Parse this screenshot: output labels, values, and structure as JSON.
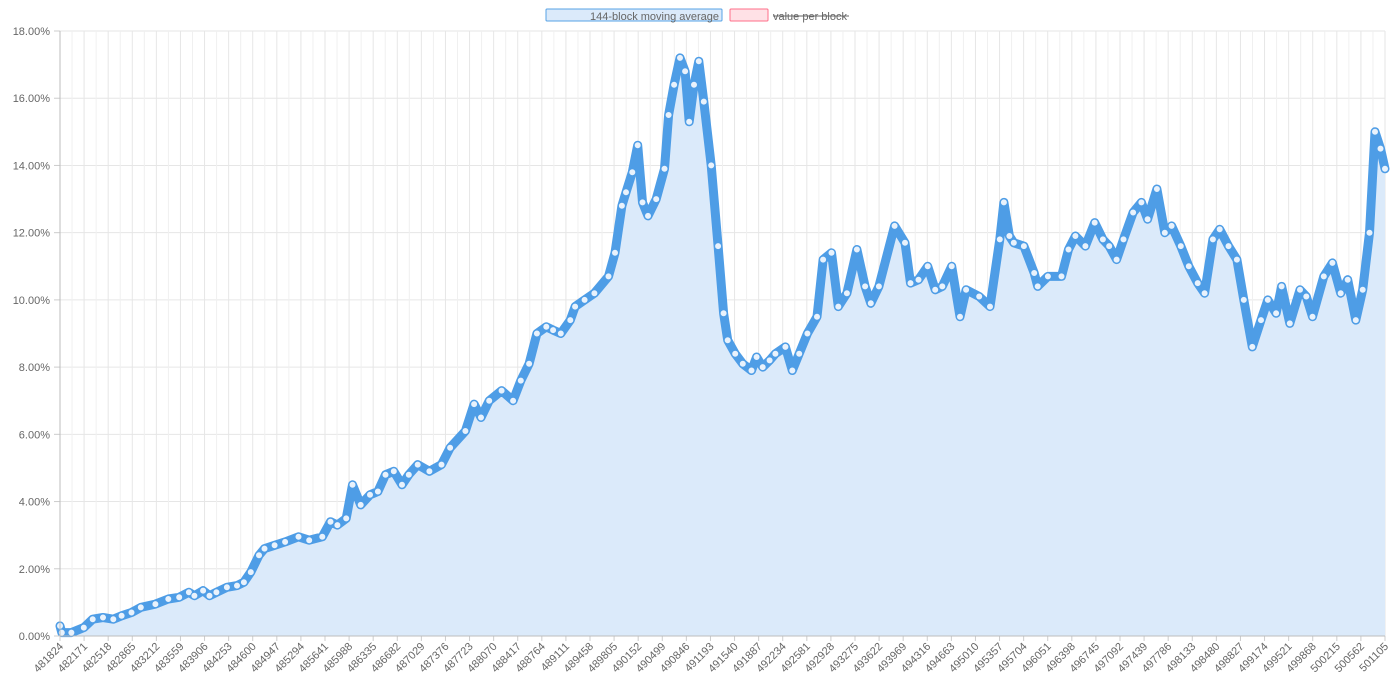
{
  "chart_data": {
    "type": "area",
    "title": "",
    "xlabel": "",
    "ylabel": "",
    "ylim": [
      0,
      18
    ],
    "y_tick_labels": [
      "0.00%",
      "2.00%",
      "4.00%",
      "6.00%",
      "8.00%",
      "10.00%",
      "12.00%",
      "14.00%",
      "16.00%",
      "18.00%"
    ],
    "y_tick_values": [
      0,
      2,
      4,
      6,
      8,
      10,
      12,
      14,
      16,
      18
    ],
    "xlim": [
      481824,
      501105
    ],
    "x_tick_labels": [
      "481824",
      "482171",
      "482518",
      "482865",
      "483212",
      "483559",
      "483906",
      "484253",
      "484600",
      "484947",
      "485294",
      "485641",
      "485988",
      "486335",
      "486682",
      "487029",
      "487376",
      "487723",
      "488070",
      "488417",
      "488764",
      "489111",
      "489458",
      "489805",
      "490152",
      "490499",
      "490846",
      "491193",
      "491540",
      "491887",
      "492234",
      "492581",
      "492928",
      "493275",
      "493622",
      "493969",
      "494316",
      "494663",
      "495010",
      "495357",
      "495704",
      "496051",
      "496398",
      "496745",
      "497092",
      "497439",
      "497786",
      "498133",
      "498480",
      "498827",
      "499174",
      "499521",
      "499868",
      "500215",
      "500562",
      "501105"
    ],
    "grid": true,
    "legend_position": "top-center",
    "legend": [
      {
        "label": "144-block moving average",
        "hidden": false,
        "fill": "#dbeafa",
        "stroke": "#57a3e6"
      },
      {
        "label": "value per block",
        "hidden": true,
        "fill": "#ffe1e6",
        "stroke": "#ff6f8a"
      }
    ],
    "series": [
      {
        "name": "144-block moving average",
        "color": "#4e9de6",
        "fill": "#dbeafa",
        "points": [
          [
            481824,
            0.3
          ],
          [
            481850,
            0.1
          ],
          [
            481990,
            0.1
          ],
          [
            482171,
            0.25
          ],
          [
            482300,
            0.5
          ],
          [
            482450,
            0.55
          ],
          [
            482600,
            0.5
          ],
          [
            482720,
            0.6
          ],
          [
            482865,
            0.7
          ],
          [
            483000,
            0.85
          ],
          [
            483212,
            0.95
          ],
          [
            483400,
            1.1
          ],
          [
            483559,
            1.15
          ],
          [
            483700,
            1.3
          ],
          [
            483780,
            1.2
          ],
          [
            483906,
            1.35
          ],
          [
            484000,
            1.2
          ],
          [
            484100,
            1.3
          ],
          [
            484253,
            1.45
          ],
          [
            484400,
            1.5
          ],
          [
            484500,
            1.6
          ],
          [
            484600,
            1.9
          ],
          [
            484720,
            2.4
          ],
          [
            484800,
            2.6
          ],
          [
            484947,
            2.7
          ],
          [
            485100,
            2.8
          ],
          [
            485294,
            2.95
          ],
          [
            485450,
            2.85
          ],
          [
            485641,
            2.95
          ],
          [
            485760,
            3.4
          ],
          [
            485860,
            3.3
          ],
          [
            485988,
            3.5
          ],
          [
            486080,
            4.5
          ],
          [
            486200,
            3.9
          ],
          [
            486335,
            4.2
          ],
          [
            486450,
            4.3
          ],
          [
            486560,
            4.8
          ],
          [
            486682,
            4.9
          ],
          [
            486800,
            4.5
          ],
          [
            486900,
            4.8
          ],
          [
            487029,
            5.1
          ],
          [
            487200,
            4.9
          ],
          [
            487376,
            5.1
          ],
          [
            487500,
            5.6
          ],
          [
            487723,
            6.1
          ],
          [
            487850,
            6.9
          ],
          [
            487950,
            6.5
          ],
          [
            488070,
            7.0
          ],
          [
            488250,
            7.3
          ],
          [
            488417,
            7.0
          ],
          [
            488530,
            7.6
          ],
          [
            488650,
            8.1
          ],
          [
            488764,
            9.0
          ],
          [
            488900,
            9.2
          ],
          [
            489000,
            9.1
          ],
          [
            489111,
            9.0
          ],
          [
            489250,
            9.4
          ],
          [
            489320,
            9.8
          ],
          [
            489458,
            10.0
          ],
          [
            489600,
            10.2
          ],
          [
            489805,
            10.7
          ],
          [
            489900,
            11.4
          ],
          [
            490000,
            12.8
          ],
          [
            490060,
            13.2
          ],
          [
            490152,
            13.8
          ],
          [
            490230,
            14.6
          ],
          [
            490300,
            12.9
          ],
          [
            490380,
            12.5
          ],
          [
            490499,
            13.0
          ],
          [
            490620,
            13.9
          ],
          [
            490680,
            15.5
          ],
          [
            490760,
            16.4
          ],
          [
            490846,
            17.2
          ],
          [
            490920,
            16.8
          ],
          [
            490980,
            15.3
          ],
          [
            491050,
            16.4
          ],
          [
            491120,
            17.1
          ],
          [
            491193,
            15.9
          ],
          [
            491300,
            14.0
          ],
          [
            491400,
            11.6
          ],
          [
            491480,
            9.6
          ],
          [
            491540,
            8.8
          ],
          [
            491650,
            8.4
          ],
          [
            491760,
            8.1
          ],
          [
            491887,
            7.9
          ],
          [
            491960,
            8.3
          ],
          [
            492050,
            8.0
          ],
          [
            492150,
            8.2
          ],
          [
            492234,
            8.4
          ],
          [
            492380,
            8.6
          ],
          [
            492480,
            7.9
          ],
          [
            492581,
            8.4
          ],
          [
            492700,
            9.0
          ],
          [
            492840,
            9.5
          ],
          [
            492928,
            11.2
          ],
          [
            493050,
            11.4
          ],
          [
            493150,
            9.8
          ],
          [
            493275,
            10.2
          ],
          [
            493420,
            11.5
          ],
          [
            493540,
            10.4
          ],
          [
            493622,
            9.9
          ],
          [
            493740,
            10.4
          ],
          [
            493969,
            12.2
          ],
          [
            494120,
            11.7
          ],
          [
            494200,
            10.5
          ],
          [
            494316,
            10.6
          ],
          [
            494450,
            11.0
          ],
          [
            494560,
            10.3
          ],
          [
            494663,
            10.4
          ],
          [
            494800,
            11.0
          ],
          [
            494920,
            9.5
          ],
          [
            495010,
            10.3
          ],
          [
            495200,
            10.1
          ],
          [
            495357,
            9.8
          ],
          [
            495500,
            11.8
          ],
          [
            495560,
            12.9
          ],
          [
            495640,
            11.9
          ],
          [
            495704,
            11.7
          ],
          [
            495850,
            11.6
          ],
          [
            496000,
            10.8
          ],
          [
            496051,
            10.4
          ],
          [
            496200,
            10.7
          ],
          [
            496398,
            10.7
          ],
          [
            496500,
            11.5
          ],
          [
            496600,
            11.9
          ],
          [
            496745,
            11.6
          ],
          [
            496880,
            12.3
          ],
          [
            497000,
            11.8
          ],
          [
            497092,
            11.6
          ],
          [
            497200,
            11.2
          ],
          [
            497300,
            11.8
          ],
          [
            497439,
            12.6
          ],
          [
            497560,
            12.9
          ],
          [
            497650,
            12.4
          ],
          [
            497786,
            13.3
          ],
          [
            497900,
            12.0
          ],
          [
            498000,
            12.2
          ],
          [
            498133,
            11.6
          ],
          [
            498250,
            11.0
          ],
          [
            498380,
            10.5
          ],
          [
            498480,
            10.2
          ],
          [
            498600,
            11.8
          ],
          [
            498700,
            12.1
          ],
          [
            498827,
            11.6
          ],
          [
            498950,
            11.2
          ],
          [
            499050,
            10.0
          ],
          [
            499174,
            8.6
          ],
          [
            499300,
            9.4
          ],
          [
            499400,
            10.0
          ],
          [
            499521,
            9.6
          ],
          [
            499600,
            10.4
          ],
          [
            499720,
            9.3
          ],
          [
            499868,
            10.3
          ],
          [
            499960,
            10.1
          ],
          [
            500050,
            9.5
          ],
          [
            500215,
            10.7
          ],
          [
            500340,
            11.1
          ],
          [
            500460,
            10.2
          ],
          [
            500562,
            10.6
          ],
          [
            500680,
            9.4
          ],
          [
            500780,
            10.3
          ],
          [
            500880,
            12.0
          ],
          [
            500960,
            15.0
          ],
          [
            501040,
            14.5
          ],
          [
            501105,
            13.9
          ]
        ]
      }
    ]
  }
}
